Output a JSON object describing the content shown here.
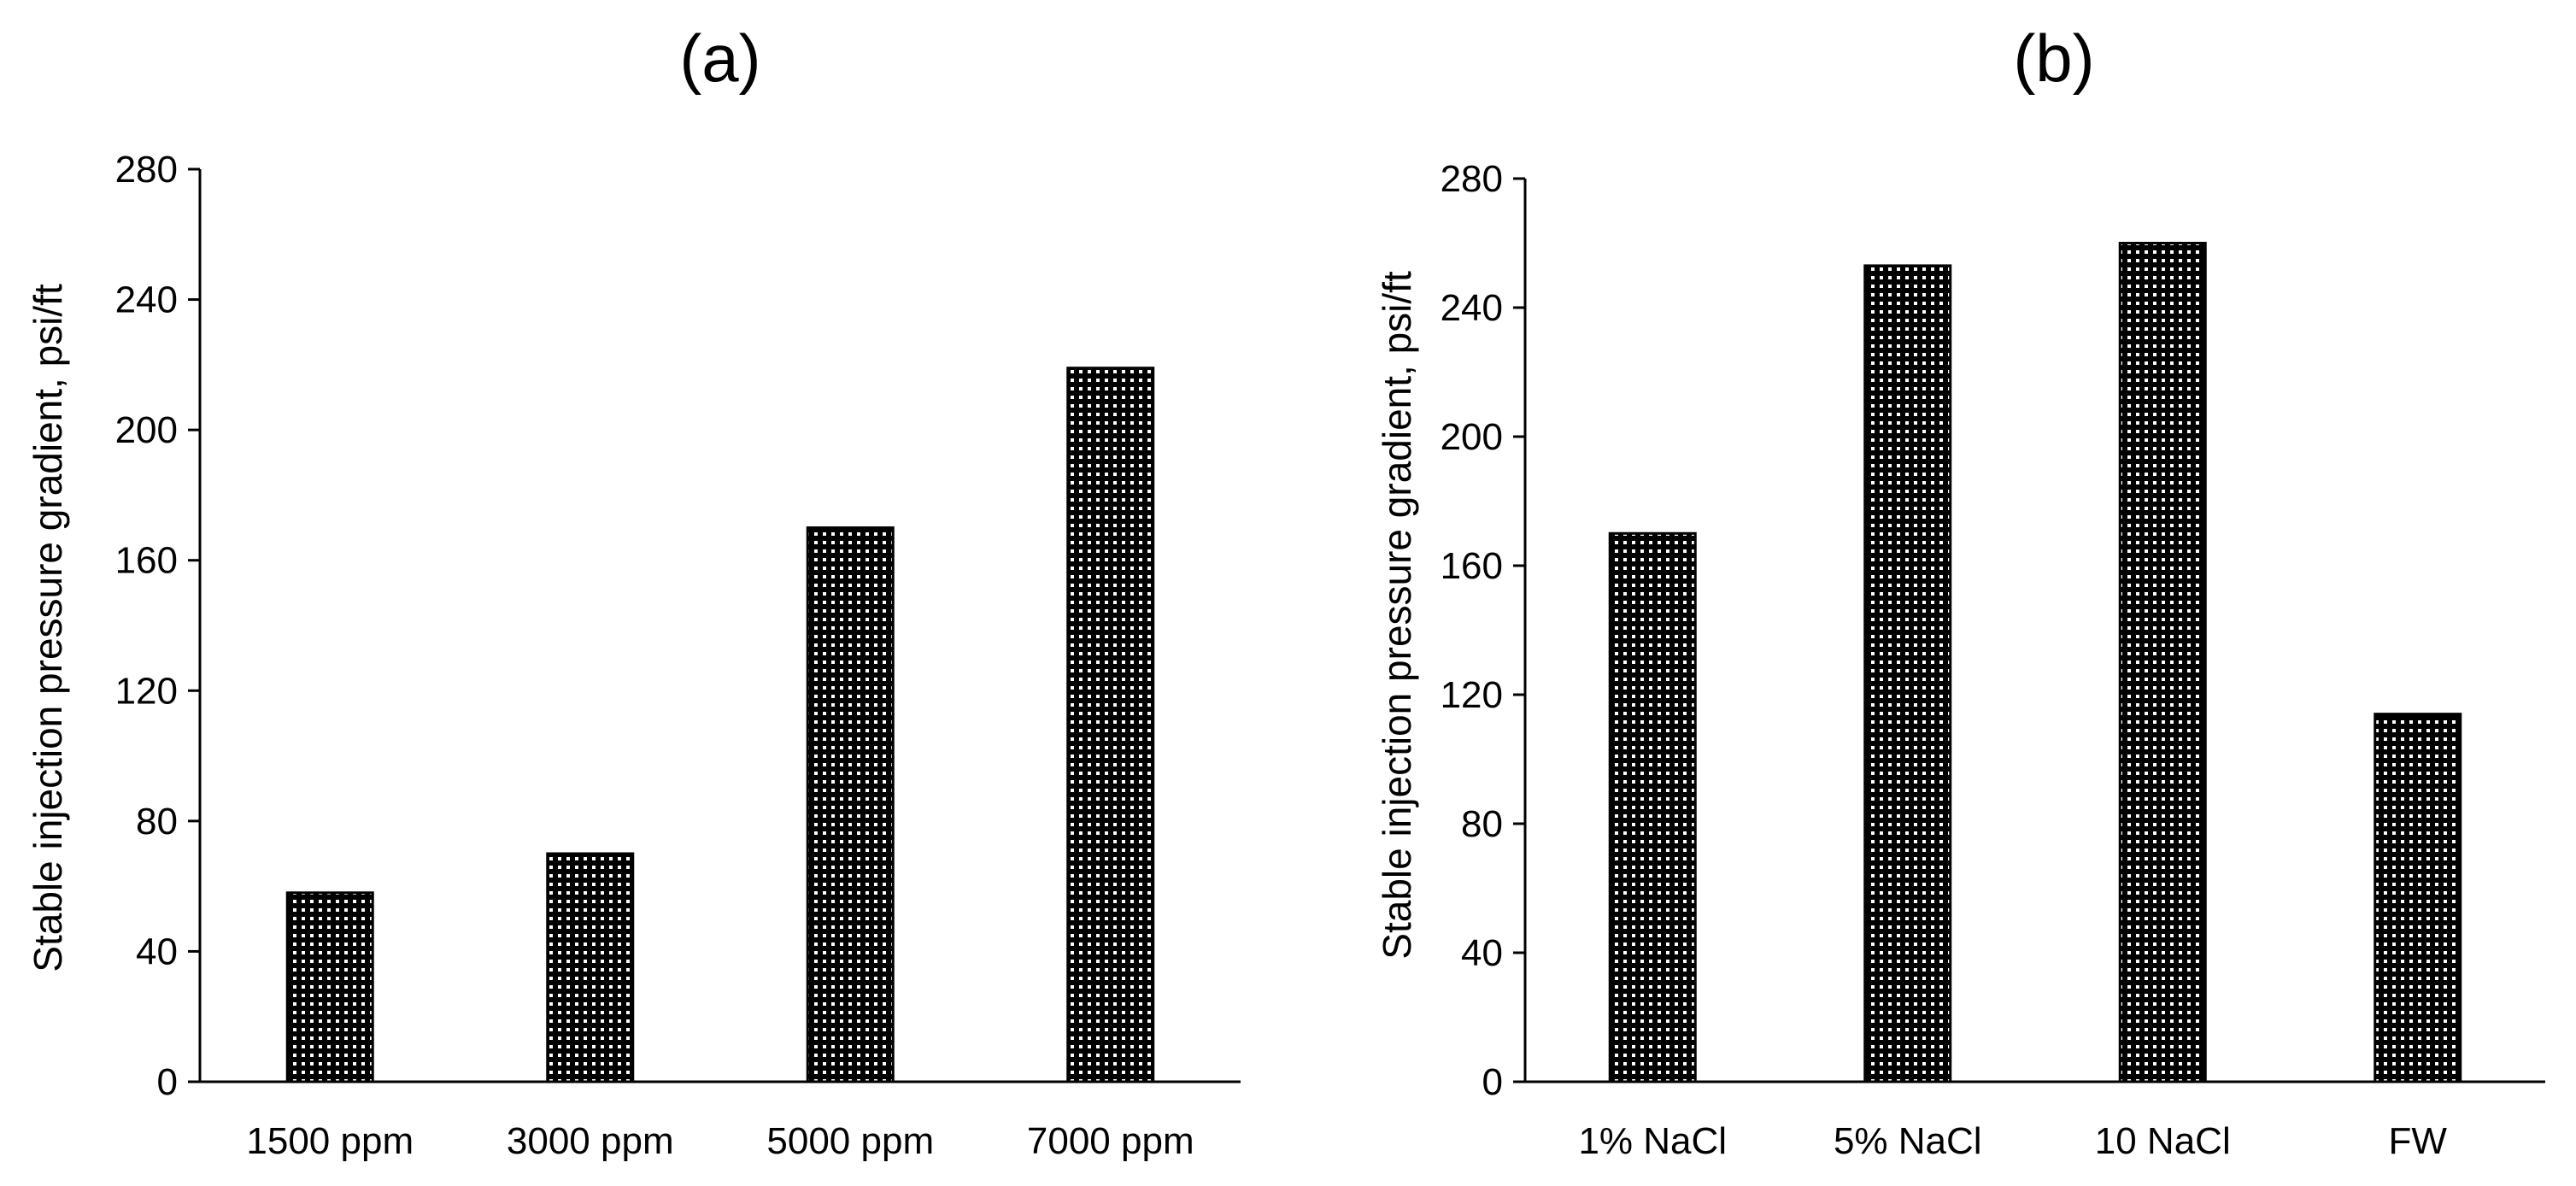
{
  "chart_data": [
    {
      "type": "bar",
      "title": "(a)",
      "xlabel": "",
      "ylabel": "Stable injection pressure gradient, psi/ft",
      "ylim": [
        0,
        280
      ],
      "yticks": [
        0,
        40,
        80,
        120,
        160,
        200,
        240,
        280
      ],
      "categories": [
        "1500 ppm",
        "3000 ppm",
        "5000 ppm",
        "7000 ppm"
      ],
      "values": [
        58,
        70,
        170,
        219
      ],
      "grid": false,
      "legend": "none",
      "fill": "dotted-pattern",
      "colors": {
        "bar_fill": "#ffffff",
        "bar_pattern": "#000000",
        "axis": "#000000"
      }
    },
    {
      "type": "bar",
      "title": "(b)",
      "xlabel": "",
      "ylabel": "Stable injection pressure gradient, psi/ft",
      "ylim": [
        0,
        280
      ],
      "yticks": [
        0,
        40,
        80,
        120,
        160,
        200,
        240,
        280
      ],
      "categories": [
        "1% NaCl",
        "5% NaCl",
        "10 NaCl",
        "FW"
      ],
      "values": [
        170,
        253,
        260,
        114
      ],
      "grid": false,
      "legend": "none",
      "fill": "dotted-pattern",
      "colors": {
        "bar_fill": "#ffffff",
        "bar_pattern": "#000000",
        "axis": "#000000"
      }
    }
  ]
}
